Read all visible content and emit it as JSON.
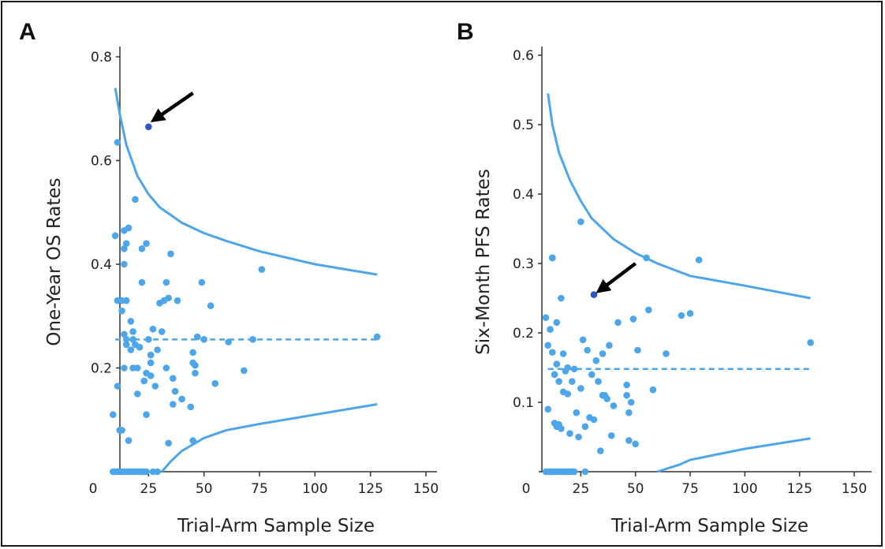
{
  "chart_data": [
    {
      "panel": "A",
      "type": "scatter",
      "xlabel": "Trial-Arm Sample Size",
      "ylabel": "One-Year OS Rates",
      "xlim": [
        0,
        150
      ],
      "ylim": [
        0,
        0.8
      ],
      "xticks": [
        0,
        25,
        50,
        75,
        100,
        125,
        150
      ],
      "yticks": [
        0.2,
        0.4,
        0.6,
        0.8
      ],
      "ytick_labels": [
        "0.2",
        "0.4",
        "0.6",
        "0.8"
      ],
      "grid": false,
      "point_color": "#4ea6ea",
      "highlight_color": "#2a56c6",
      "line_color": "#4ea6ea",
      "mean_line": 0.255,
      "upper_limit": [
        [
          10,
          0.74
        ],
        [
          12,
          0.69
        ],
        [
          15,
          0.63
        ],
        [
          20,
          0.57
        ],
        [
          25,
          0.535
        ],
        [
          30,
          0.51
        ],
        [
          40,
          0.48
        ],
        [
          50,
          0.46
        ],
        [
          60,
          0.445
        ],
        [
          75,
          0.425
        ],
        [
          100,
          0.4
        ],
        [
          128,
          0.38
        ]
      ],
      "lower_limit": [
        [
          31,
          0
        ],
        [
          35,
          0.02
        ],
        [
          40,
          0.04
        ],
        [
          50,
          0.065
        ],
        [
          60,
          0.08
        ],
        [
          75,
          0.092
        ],
        [
          100,
          0.11
        ],
        [
          128,
          0.13
        ]
      ],
      "points": [
        [
          9,
          0.11
        ],
        [
          10,
          0.455
        ],
        [
          11,
          0.635
        ],
        [
          11,
          0.165
        ],
        [
          11,
          0.33
        ],
        [
          12,
          0.08
        ],
        [
          13,
          0.08
        ],
        [
          13,
          0.31
        ],
        [
          13,
          0.33
        ],
        [
          14,
          0.43
        ],
        [
          14,
          0.465
        ],
        [
          14,
          0.4
        ],
        [
          14,
          0.265
        ],
        [
          14,
          0.2
        ],
        [
          15,
          0.44
        ],
        [
          15,
          0.255
        ],
        [
          15,
          0.245
        ],
        [
          15,
          0.33
        ],
        [
          16,
          0.47
        ],
        [
          16,
          0.06
        ],
        [
          17,
          0.29
        ],
        [
          17,
          0.235
        ],
        [
          18,
          0.2
        ],
        [
          18,
          0.27
        ],
        [
          18,
          0.255
        ],
        [
          19,
          0.525
        ],
        [
          19,
          0.245
        ],
        [
          20,
          0.15
        ],
        [
          20,
          0.2
        ],
        [
          21,
          0.24
        ],
        [
          22,
          0.365
        ],
        [
          22,
          0.43
        ],
        [
          23,
          0.175
        ],
        [
          24,
          0.44
        ],
        [
          24,
          0.19
        ],
        [
          24,
          0.11
        ],
        [
          25,
          0.255
        ],
        [
          26,
          0.225
        ],
        [
          26,
          0.21
        ],
        [
          26,
          0.185
        ],
        [
          27,
          0.275
        ],
        [
          28,
          0.165
        ],
        [
          29,
          0.235
        ],
        [
          30,
          0.325
        ],
        [
          31,
          0.27
        ],
        [
          32,
          0.33
        ],
        [
          33,
          0.365
        ],
        [
          33,
          0.2
        ],
        [
          34,
          0.055
        ],
        [
          34,
          0.335
        ],
        [
          35,
          0.42
        ],
        [
          36,
          0.18
        ],
        [
          36,
          0.13
        ],
        [
          37,
          0.155
        ],
        [
          38,
          0.33
        ],
        [
          40,
          0.14
        ],
        [
          44,
          0.125
        ],
        [
          45,
          0.21
        ],
        [
          45,
          0.23
        ],
        [
          45,
          0.06
        ],
        [
          46,
          0.205
        ],
        [
          46,
          0.19
        ],
        [
          47,
          0.26
        ],
        [
          49,
          0.365
        ],
        [
          50,
          0.255
        ],
        [
          53,
          0.32
        ],
        [
          55,
          0.17
        ],
        [
          61,
          0.25
        ],
        [
          68,
          0.195
        ],
        [
          72,
          0.255
        ],
        [
          76,
          0.39
        ],
        [
          128,
          0.26
        ]
      ],
      "zero_points": [
        9,
        10,
        11,
        12,
        13,
        14,
        15,
        16,
        17,
        18,
        19,
        20,
        21,
        22,
        23,
        24,
        27,
        29
      ],
      "highlight_point": [
        25,
        0.665
      ],
      "arrow": {
        "from": [
          45,
          0.73
        ],
        "to": [
          28,
          0.68
        ]
      }
    },
    {
      "panel": "B",
      "type": "scatter",
      "xlabel": "Trial-Arm Sample Size",
      "ylabel": "Six-Month PFS Rates",
      "xlim": [
        0,
        150
      ],
      "ylim": [
        0,
        0.6
      ],
      "xticks": [
        0,
        25,
        50,
        75,
        100,
        125,
        150
      ],
      "yticks": [
        0.1,
        0.2,
        0.3,
        0.4,
        0.5,
        0.6
      ],
      "ytick_labels": [
        "0.1",
        "0.2",
        "0.3",
        "0.4",
        "0.5",
        "0.6"
      ],
      "grid": false,
      "point_color": "#4ea6ea",
      "highlight_color": "#2a56c6",
      "line_color": "#4ea6ea",
      "mean_line": 0.148,
      "upper_limit": [
        [
          10,
          0.545
        ],
        [
          12,
          0.5
        ],
        [
          15,
          0.46
        ],
        [
          20,
          0.42
        ],
        [
          25,
          0.39
        ],
        [
          30,
          0.365
        ],
        [
          40,
          0.335
        ],
        [
          50,
          0.315
        ],
        [
          60,
          0.3
        ],
        [
          75,
          0.282
        ],
        [
          100,
          0.268
        ],
        [
          130,
          0.25
        ]
      ],
      "lower_limit": [
        [
          60,
          0
        ],
        [
          65,
          0.005
        ],
        [
          70,
          0.01
        ],
        [
          75,
          0.017
        ],
        [
          100,
          0.033
        ],
        [
          130,
          0.048
        ]
      ],
      "points": [
        [
          9,
          0.222
        ],
        [
          10,
          0.182
        ],
        [
          10,
          0.09
        ],
        [
          11,
          0.205
        ],
        [
          12,
          0.308
        ],
        [
          12,
          0.308
        ],
        [
          12,
          0.172
        ],
        [
          13,
          0.14
        ],
        [
          13,
          0.07
        ],
        [
          14,
          0.215
        ],
        [
          14,
          0.065
        ],
        [
          14,
          0.155
        ],
        [
          15,
          0.13
        ],
        [
          15,
          0.068
        ],
        [
          16,
          0.25
        ],
        [
          16,
          0.062
        ],
        [
          17,
          0.115
        ],
        [
          17,
          0.17
        ],
        [
          18,
          0.145
        ],
        [
          19,
          0.112
        ],
        [
          19,
          0.15
        ],
        [
          20,
          0.055
        ],
        [
          21,
          0.13
        ],
        [
          22,
          0.148
        ],
        [
          23,
          0.085
        ],
        [
          24,
          0.05
        ],
        [
          25,
          0.12
        ],
        [
          25,
          0.36
        ],
        [
          26,
          0.19
        ],
        [
          27,
          0.065
        ],
        [
          28,
          0.175
        ],
        [
          29,
          0.078
        ],
        [
          30,
          0.14
        ],
        [
          31,
          0.075
        ],
        [
          32,
          0.16
        ],
        [
          33,
          0.13
        ],
        [
          34,
          0.03
        ],
        [
          35,
          0.17
        ],
        [
          35,
          0.11
        ],
        [
          36,
          0.11
        ],
        [
          37,
          0.105
        ],
        [
          38,
          0.182
        ],
        [
          39,
          0.052
        ],
        [
          40,
          0.095
        ],
        [
          42,
          0.215
        ],
        [
          46,
          0.125
        ],
        [
          46,
          0.11
        ],
        [
          47,
          0.085
        ],
        [
          47,
          0.045
        ],
        [
          48,
          0.1
        ],
        [
          49,
          0.22
        ],
        [
          50,
          0.04
        ],
        [
          51,
          0.175
        ],
        [
          55,
          0.308
        ],
        [
          56,
          0.233
        ],
        [
          58,
          0.118
        ],
        [
          64,
          0.17
        ],
        [
          71,
          0.225
        ],
        [
          75,
          0.228
        ],
        [
          79,
          0.305
        ],
        [
          130,
          0.186
        ]
      ],
      "zero_points": [
        9,
        10,
        11,
        12,
        13,
        14,
        15,
        16,
        17,
        18,
        19,
        20,
        21,
        22,
        27
      ],
      "highlight_point": [
        31,
        0.255
      ],
      "arrow": {
        "from": [
          50,
          0.3
        ],
        "to": [
          34,
          0.262
        ]
      }
    }
  ]
}
